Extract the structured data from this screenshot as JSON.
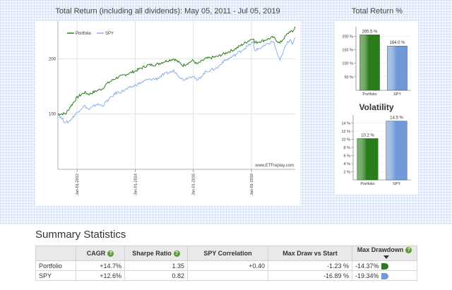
{
  "chart_data": [
    {
      "type": "line",
      "title": "Total Return (including all dividends): May 05, 2011 - Jul 05, 2019",
      "xlabel": "",
      "ylabel": "",
      "x_ticks": [
        "Jan-01-2012",
        "Jan-01-2014",
        "Jan-01-2016",
        "Jan-01-2018"
      ],
      "y_ticks": [
        100,
        200
      ],
      "ylim": [
        0,
        268
      ],
      "xlim": [
        "2011-05-05",
        "2019-07-05"
      ],
      "grid": true,
      "legend": "top-left",
      "watermark": "www.ETFreplay.com",
      "series": [
        {
          "name": "Portfolio",
          "color": "#2a7d1a",
          "x": [
            "2011-05-05",
            "2011-08-15",
            "2011-10-01",
            "2012-01-01",
            "2012-04-01",
            "2012-06-01",
            "2012-09-01",
            "2012-11-15",
            "2013-01-01",
            "2013-05-01",
            "2013-07-01",
            "2014-01-01",
            "2014-06-01",
            "2014-10-01",
            "2015-01-01",
            "2015-05-01",
            "2015-08-25",
            "2016-01-01",
            "2016-02-15",
            "2016-06-01",
            "2016-11-01",
            "2017-01-01",
            "2017-06-01",
            "2018-01-25",
            "2018-02-09",
            "2018-06-01",
            "2018-10-01",
            "2018-12-24",
            "2019-03-01",
            "2019-05-01",
            "2019-06-01",
            "2019-07-05"
          ],
          "y": [
            100,
            101,
            112,
            130,
            139,
            136,
            142,
            146,
            154,
            165,
            168,
            178,
            188,
            190,
            195,
            200,
            188,
            197,
            190,
            200,
            204,
            208,
            217,
            238,
            229,
            233,
            239,
            228,
            240,
            250,
            248,
            258
          ]
        },
        {
          "name": "SPY",
          "color": "#8ab0e6",
          "x": [
            "2011-05-05",
            "2011-08-15",
            "2011-10-01",
            "2012-01-01",
            "2012-04-01",
            "2012-06-01",
            "2012-09-01",
            "2012-11-15",
            "2013-01-01",
            "2013-05-01",
            "2013-07-01",
            "2014-01-01",
            "2014-06-01",
            "2014-10-01",
            "2015-01-01",
            "2015-05-01",
            "2015-08-25",
            "2016-01-01",
            "2016-02-15",
            "2016-06-01",
            "2016-11-01",
            "2017-01-01",
            "2017-06-01",
            "2018-01-25",
            "2018-02-09",
            "2018-06-01",
            "2018-10-01",
            "2018-12-24",
            "2019-03-01",
            "2019-05-01",
            "2019-06-01",
            "2019-07-05"
          ],
          "y": [
            100,
            84,
            88,
            103,
            115,
            108,
            118,
            115,
            122,
            138,
            140,
            152,
            162,
            164,
            172,
            178,
            162,
            170,
            160,
            176,
            184,
            194,
            206,
            230,
            215,
            222,
            232,
            196,
            222,
            236,
            228,
            238
          ]
        }
      ]
    },
    {
      "type": "bar",
      "title": "Total Return %",
      "categories": [
        "Portfolio",
        "SPY"
      ],
      "values": [
        205.5,
        164.0
      ],
      "data_labels": [
        "205.5 %",
        "164.0 %"
      ],
      "y_ticks": [
        "50 %",
        "100 %",
        "150 %",
        "200 %"
      ],
      "ylim": [
        0,
        235
      ],
      "colors": [
        "#2a7d1a",
        "#6f99d8"
      ]
    },
    {
      "type": "bar",
      "title": "Volatility",
      "categories": [
        "Portfolio",
        "SPY"
      ],
      "values": [
        10.2,
        14.5
      ],
      "data_labels": [
        "10.2 %",
        "14.5 %"
      ],
      "y_ticks": [
        "2 %",
        "4 %",
        "6 %",
        "8 %",
        "10 %",
        "12 %",
        "14 %"
      ],
      "ylim": [
        0,
        16
      ],
      "colors": [
        "#2a7d1a",
        "#6f99d8"
      ]
    },
    {
      "type": "table",
      "title": "Summary Statistics",
      "columns": [
        "",
        "CAGR",
        "Sharpe Ratio",
        "SPY Correlation",
        "Max Draw vs Start",
        "Max Drawdown"
      ],
      "rows": [
        {
          "name": "Portfolio",
          "cagr": "+14.7%",
          "sharpe": "1.35",
          "corr": "+0.40",
          "draw_vs_start": "-1.23 %",
          "max_drawdown": "-14.37%",
          "dd_color": "#2a7d1a"
        },
        {
          "name": "SPY",
          "cagr": "+12.6%",
          "sharpe": "0.82",
          "corr": "",
          "draw_vs_start": "-16.89 %",
          "max_drawdown": "-19.34%",
          "dd_color": "#6f99d8"
        }
      ]
    }
  ]
}
